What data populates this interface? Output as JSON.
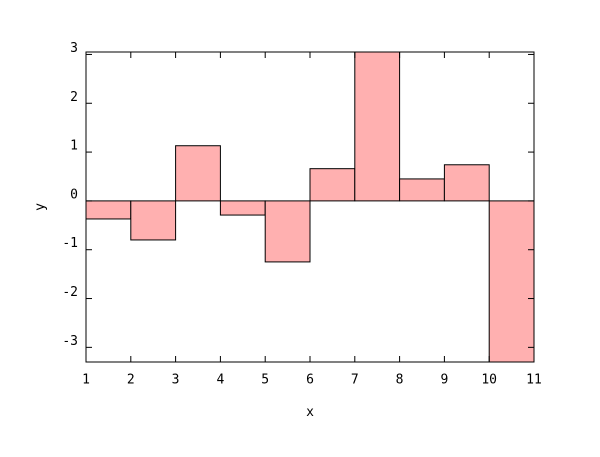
{
  "chart_data": {
    "type": "histogram",
    "x_label": "x",
    "y_label": "y",
    "bins": [
      1,
      2,
      3,
      4,
      5,
      6,
      7,
      8,
      9,
      10,
      11
    ],
    "values": [
      -0.37,
      -0.8,
      1.13,
      -0.29,
      -1.25,
      0.66,
      3.05,
      0.45,
      0.74,
      -3.3
    ],
    "color": "#ffb0b0",
    "xlim": [
      1,
      11
    ],
    "xticks": [
      1,
      2,
      3,
      4,
      5,
      6,
      7,
      8,
      9,
      10,
      11
    ],
    "ylim": [
      -3.3,
      3.05
    ],
    "yticks": [
      -3,
      -2,
      -1,
      0,
      1,
      2,
      3
    ],
    "grid": false
  }
}
